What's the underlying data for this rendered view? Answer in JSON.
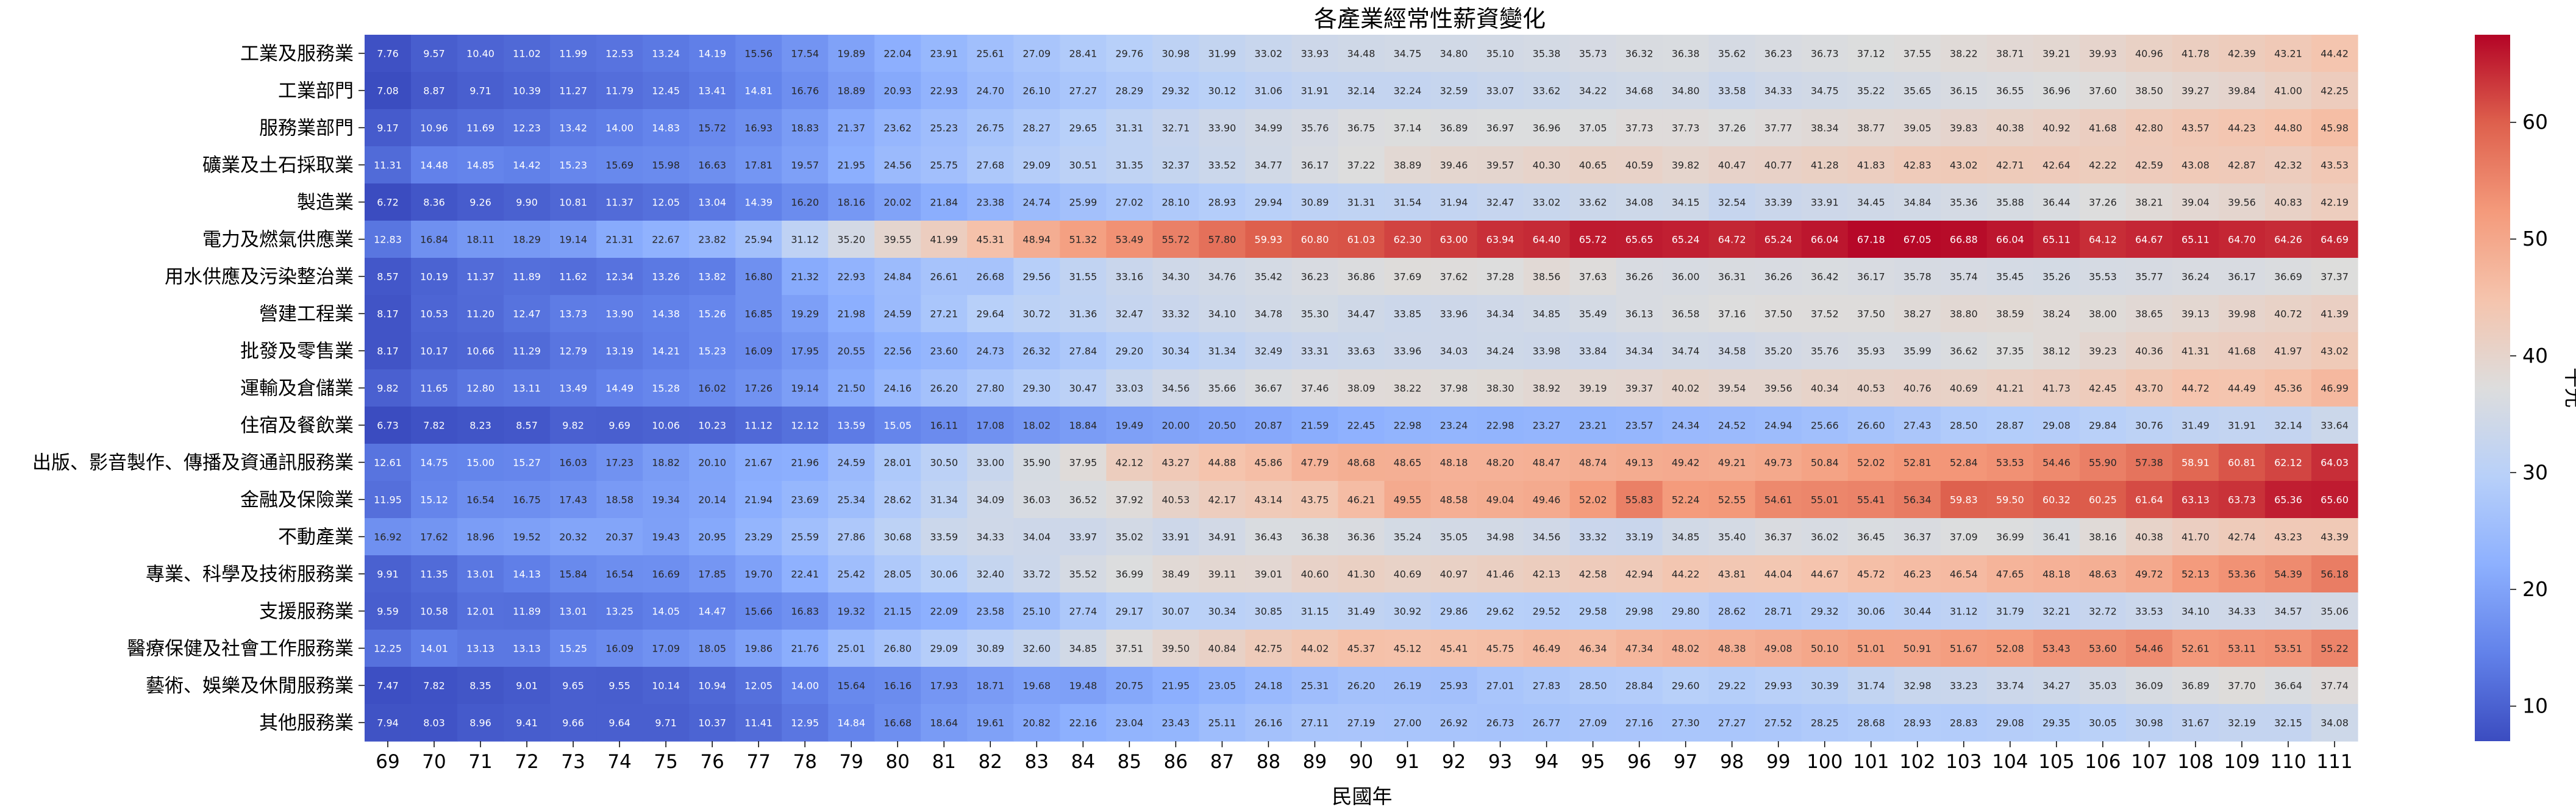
{
  "chart_data": {
    "type": "heatmap",
    "title": "各產業經常性薪資變化",
    "xlabel": "民國年",
    "colorbar_label": "千元",
    "colorbar_ticks": [
      10,
      20,
      30,
      40,
      50,
      60
    ],
    "vmin": 7.0,
    "vmax": 67.5,
    "colormap": "coolwarm",
    "x": [
      "69",
      "70",
      "71",
      "72",
      "73",
      "74",
      "75",
      "76",
      "77",
      "78",
      "79",
      "80",
      "81",
      "82",
      "83",
      "84",
      "85",
      "86",
      "87",
      "88",
      "89",
      "90",
      "91",
      "92",
      "93",
      "94",
      "95",
      "96",
      "97",
      "98",
      "99",
      "100",
      "101",
      "102",
      "103",
      "104",
      "105",
      "106",
      "107",
      "108",
      "109",
      "110",
      "111"
    ],
    "rows": [
      "工業及服務業",
      "工業部門",
      "服務業部門",
      "礦業及土石採取業",
      "製造業",
      "電力及燃氣供應業",
      "用水供應及污染整治業",
      "營建工程業",
      "批發及零售業",
      "運輸及倉儲業",
      "住宿及餐飲業",
      "出版、影音製作、傳播及資通訊服務業",
      "金融及保險業",
      "不動產業",
      "專業、科學及技術服務業",
      "支援服務業",
      "醫療保健及社會工作服務業",
      "藝術、娛樂及休閒服務業",
      "其他服務業"
    ],
    "values": [
      [
        "7.76",
        "9.57",
        "10.40",
        "11.02",
        "11.99",
        "12.53",
        "13.24",
        "14.19",
        "15.56",
        "17.54",
        "19.89",
        "22.04",
        "23.91",
        "25.61",
        "27.09",
        "28.41",
        "29.76",
        "30.98",
        "31.99",
        "33.02",
        "33.93",
        "34.48",
        "34.75",
        "34.80",
        "35.10",
        "35.38",
        "35.73",
        "36.32",
        "36.38",
        "35.62",
        "36.23",
        "36.73",
        "37.12",
        "37.55",
        "38.22",
        "38.71",
        "39.21",
        "39.93",
        "40.96",
        "41.78",
        "42.39",
        "43.21",
        "44.42"
      ],
      [
        "7.08",
        "8.87",
        "9.71",
        "10.39",
        "11.27",
        "11.79",
        "12.45",
        "13.41",
        "14.81",
        "16.76",
        "18.89",
        "20.93",
        "22.93",
        "24.70",
        "26.10",
        "27.27",
        "28.29",
        "29.32",
        "30.12",
        "31.06",
        "31.91",
        "32.14",
        "32.24",
        "32.59",
        "33.07",
        "33.62",
        "34.22",
        "34.68",
        "34.80",
        "33.58",
        "34.33",
        "34.75",
        "35.22",
        "35.65",
        "36.15",
        "36.55",
        "36.96",
        "37.60",
        "38.50",
        "39.27",
        "39.84",
        "41.00",
        "42.25"
      ],
      [
        "9.17",
        "10.96",
        "11.69",
        "12.23",
        "13.42",
        "14.00",
        "14.83",
        "15.72",
        "16.93",
        "18.83",
        "21.37",
        "23.62",
        "25.23",
        "26.75",
        "28.27",
        "29.65",
        "31.31",
        "32.71",
        "33.90",
        "34.99",
        "35.76",
        "36.75",
        "37.14",
        "36.89",
        "36.97",
        "36.96",
        "37.05",
        "37.73",
        "37.73",
        "37.26",
        "37.77",
        "38.34",
        "38.77",
        "39.05",
        "39.83",
        "40.38",
        "40.92",
        "41.68",
        "42.80",
        "43.57",
        "44.23",
        "44.80",
        "45.98"
      ],
      [
        "11.31",
        "14.48",
        "14.85",
        "14.42",
        "15.23",
        "15.69",
        "15.98",
        "16.63",
        "17.81",
        "19.57",
        "21.95",
        "24.56",
        "25.75",
        "27.68",
        "29.09",
        "30.51",
        "31.35",
        "32.37",
        "33.52",
        "34.77",
        "36.17",
        "37.22",
        "38.89",
        "39.46",
        "39.57",
        "40.30",
        "40.65",
        "40.59",
        "39.82",
        "40.47",
        "40.77",
        "41.28",
        "41.83",
        "42.83",
        "43.02",
        "42.71",
        "42.64",
        "42.22",
        "42.59",
        "43.08",
        "42.87",
        "42.32",
        "43.53"
      ],
      [
        "6.72",
        "8.36",
        "9.26",
        "9.90",
        "10.81",
        "11.37",
        "12.05",
        "13.04",
        "14.39",
        "16.20",
        "18.16",
        "20.02",
        "21.84",
        "23.38",
        "24.74",
        "25.99",
        "27.02",
        "28.10",
        "28.93",
        "29.94",
        "30.89",
        "31.31",
        "31.54",
        "31.94",
        "32.47",
        "33.02",
        "33.62",
        "34.08",
        "34.15",
        "32.54",
        "33.39",
        "33.91",
        "34.45",
        "34.84",
        "35.36",
        "35.88",
        "36.44",
        "37.26",
        "38.21",
        "39.04",
        "39.56",
        "40.83",
        "42.19"
      ],
      [
        "12.83",
        "16.84",
        "18.11",
        "18.29",
        "19.14",
        "21.31",
        "22.67",
        "23.82",
        "25.94",
        "31.12",
        "35.20",
        "39.55",
        "41.99",
        "45.31",
        "48.94",
        "51.32",
        "53.49",
        "55.72",
        "57.80",
        "59.93",
        "60.80",
        "61.03",
        "62.30",
        "63.00",
        "63.94",
        "64.40",
        "65.72",
        "65.65",
        "65.24",
        "64.72",
        "65.24",
        "66.04",
        "67.18",
        "67.05",
        "66.88",
        "66.04",
        "65.11",
        "64.12",
        "64.67",
        "65.11",
        "64.70",
        "64.26",
        "64.69"
      ],
      [
        "8.57",
        "10.19",
        "11.37",
        "11.89",
        "11.62",
        "12.34",
        "13.26",
        "13.82",
        "16.80",
        "21.32",
        "22.93",
        "24.84",
        "26.61",
        "26.68",
        "29.56",
        "31.55",
        "33.16",
        "34.30",
        "34.76",
        "35.42",
        "36.23",
        "36.86",
        "37.69",
        "37.62",
        "37.28",
        "38.56",
        "37.63",
        "36.26",
        "36.00",
        "36.31",
        "36.26",
        "36.42",
        "36.17",
        "35.78",
        "35.74",
        "35.45",
        "35.26",
        "35.53",
        "35.77",
        "36.24",
        "36.17",
        "36.69",
        "37.37"
      ],
      [
        "8.17",
        "10.53",
        "11.20",
        "12.47",
        "13.73",
        "13.90",
        "14.38",
        "15.26",
        "16.85",
        "19.29",
        "21.98",
        "24.59",
        "27.21",
        "29.64",
        "30.72",
        "31.36",
        "32.47",
        "33.32",
        "34.10",
        "34.78",
        "35.30",
        "34.47",
        "33.85",
        "33.96",
        "34.34",
        "34.85",
        "35.49",
        "36.13",
        "36.58",
        "37.16",
        "37.50",
        "37.52",
        "37.50",
        "38.27",
        "38.80",
        "38.59",
        "38.24",
        "38.00",
        "38.65",
        "39.13",
        "39.98",
        "40.72",
        "41.39"
      ],
      [
        "8.17",
        "10.17",
        "10.66",
        "11.29",
        "12.79",
        "13.19",
        "14.21",
        "15.23",
        "16.09",
        "17.95",
        "20.55",
        "22.56",
        "23.60",
        "24.73",
        "26.32",
        "27.84",
        "29.20",
        "30.34",
        "31.34",
        "32.49",
        "33.31",
        "33.63",
        "33.96",
        "34.03",
        "34.24",
        "33.98",
        "33.84",
        "34.34",
        "34.74",
        "34.58",
        "35.20",
        "35.76",
        "35.93",
        "35.99",
        "36.62",
        "37.35",
        "38.12",
        "39.23",
        "40.36",
        "41.31",
        "41.68",
        "41.97",
        "43.02"
      ],
      [
        "9.82",
        "11.65",
        "12.80",
        "13.11",
        "13.49",
        "14.49",
        "15.28",
        "16.02",
        "17.26",
        "19.14",
        "21.50",
        "24.16",
        "26.20",
        "27.80",
        "29.30",
        "30.47",
        "33.03",
        "34.56",
        "35.66",
        "36.67",
        "37.46",
        "38.09",
        "38.22",
        "37.98",
        "38.30",
        "38.92",
        "39.19",
        "39.37",
        "40.02",
        "39.54",
        "39.56",
        "40.34",
        "40.53",
        "40.76",
        "40.69",
        "41.21",
        "41.73",
        "42.45",
        "43.70",
        "44.72",
        "44.49",
        "45.36",
        "46.99"
      ],
      [
        "6.73",
        "7.82",
        "8.23",
        "8.57",
        "9.82",
        "9.69",
        "10.06",
        "10.23",
        "11.12",
        "12.12",
        "13.59",
        "15.05",
        "16.11",
        "17.08",
        "18.02",
        "18.84",
        "19.49",
        "20.00",
        "20.50",
        "20.87",
        "21.59",
        "22.45",
        "22.98",
        "23.24",
        "22.98",
        "23.27",
        "23.21",
        "23.57",
        "24.34",
        "24.52",
        "24.94",
        "25.66",
        "26.60",
        "27.43",
        "28.50",
        "28.87",
        "29.08",
        "29.84",
        "30.76",
        "31.49",
        "31.91",
        "32.14",
        "33.64"
      ],
      [
        "12.61",
        "14.75",
        "15.00",
        "15.27",
        "16.03",
        "17.23",
        "18.82",
        "20.10",
        "21.67",
        "21.96",
        "24.59",
        "28.01",
        "30.50",
        "33.00",
        "35.90",
        "37.95",
        "42.12",
        "43.27",
        "44.88",
        "45.86",
        "47.79",
        "48.68",
        "48.65",
        "48.18",
        "48.20",
        "48.47",
        "48.74",
        "49.13",
        "49.42",
        "49.21",
        "49.73",
        "50.84",
        "52.02",
        "52.81",
        "52.84",
        "53.53",
        "54.46",
        "55.90",
        "57.38",
        "58.91",
        "60.81",
        "62.12",
        "64.03"
      ],
      [
        "11.95",
        "15.12",
        "16.54",
        "16.75",
        "17.43",
        "18.58",
        "19.34",
        "20.14",
        "21.94",
        "23.69",
        "25.34",
        "28.62",
        "31.34",
        "34.09",
        "36.03",
        "36.52",
        "37.92",
        "40.53",
        "42.17",
        "43.14",
        "43.75",
        "46.21",
        "49.55",
        "48.58",
        "49.04",
        "49.46",
        "52.02",
        "55.83",
        "52.24",
        "52.55",
        "54.61",
        "55.01",
        "55.41",
        "56.34",
        "59.83",
        "59.50",
        "60.32",
        "60.25",
        "61.64",
        "63.13",
        "63.73",
        "65.36",
        "65.60"
      ],
      [
        "16.92",
        "17.62",
        "18.96",
        "19.52",
        "20.32",
        "20.37",
        "19.43",
        "20.95",
        "23.29",
        "25.59",
        "27.86",
        "30.68",
        "33.59",
        "34.33",
        "34.04",
        "33.97",
        "35.02",
        "33.91",
        "34.91",
        "36.43",
        "36.38",
        "36.36",
        "35.24",
        "35.05",
        "34.98",
        "34.56",
        "33.32",
        "33.19",
        "34.85",
        "35.40",
        "36.37",
        "36.02",
        "36.45",
        "36.37",
        "37.09",
        "36.99",
        "36.41",
        "38.16",
        "40.38",
        "41.70",
        "42.74",
        "43.23",
        "43.39"
      ],
      [
        "9.91",
        "11.35",
        "13.01",
        "14.13",
        "15.84",
        "16.54",
        "16.69",
        "17.85",
        "19.70",
        "22.41",
        "25.42",
        "28.05",
        "30.06",
        "32.40",
        "33.72",
        "35.52",
        "36.99",
        "38.49",
        "39.11",
        "39.01",
        "40.60",
        "41.30",
        "40.69",
        "40.97",
        "41.46",
        "42.13",
        "42.58",
        "42.94",
        "44.22",
        "43.81",
        "44.04",
        "44.67",
        "45.72",
        "46.23",
        "46.54",
        "47.65",
        "48.18",
        "48.63",
        "49.72",
        "52.13",
        "53.36",
        "54.39",
        "56.18"
      ],
      [
        "9.59",
        "10.58",
        "12.01",
        "11.89",
        "13.01",
        "13.25",
        "14.05",
        "14.47",
        "15.66",
        "16.83",
        "19.32",
        "21.15",
        "22.09",
        "23.58",
        "25.10",
        "27.74",
        "29.17",
        "30.07",
        "30.34",
        "30.85",
        "31.15",
        "31.49",
        "30.92",
        "29.86",
        "29.62",
        "29.52",
        "29.58",
        "29.98",
        "29.80",
        "28.62",
        "28.71",
        "29.32",
        "30.06",
        "30.44",
        "31.12",
        "31.79",
        "32.21",
        "32.72",
        "33.53",
        "34.10",
        "34.33",
        "34.57",
        "35.06"
      ],
      [
        "12.25",
        "14.01",
        "13.13",
        "13.13",
        "15.25",
        "16.09",
        "17.09",
        "18.05",
        "19.86",
        "21.76",
        "25.01",
        "26.80",
        "29.09",
        "30.89",
        "32.60",
        "34.85",
        "37.51",
        "39.50",
        "40.84",
        "42.75",
        "44.02",
        "45.37",
        "45.12",
        "45.41",
        "45.75",
        "46.49",
        "46.34",
        "47.34",
        "48.02",
        "48.38",
        "49.08",
        "50.10",
        "51.01",
        "50.91",
        "51.67",
        "52.08",
        "53.43",
        "53.60",
        "54.46",
        "52.61",
        "53.11",
        "53.51",
        "55.22"
      ],
      [
        "7.47",
        "7.82",
        "8.35",
        "9.01",
        "9.65",
        "9.55",
        "10.14",
        "10.94",
        "12.05",
        "14.00",
        "15.64",
        "16.16",
        "17.93",
        "18.71",
        "19.68",
        "19.48",
        "20.75",
        "21.95",
        "23.05",
        "24.18",
        "25.31",
        "26.20",
        "26.19",
        "25.93",
        "27.01",
        "27.83",
        "28.50",
        "28.84",
        "29.60",
        "29.22",
        "29.93",
        "30.39",
        "31.74",
        "32.98",
        "33.23",
        "33.74",
        "34.27",
        "35.03",
        "36.09",
        "36.89",
        "37.70",
        "36.64",
        "37.74"
      ],
      [
        "7.94",
        "8.03",
        "8.96",
        "9.41",
        "9.66",
        "9.64",
        "9.71",
        "10.37",
        "11.41",
        "12.95",
        "14.84",
        "16.68",
        "18.64",
        "19.61",
        "20.82",
        "22.16",
        "23.04",
        "23.43",
        "25.11",
        "26.16",
        "27.11",
        "27.19",
        "27.00",
        "26.92",
        "26.73",
        "26.77",
        "27.09",
        "27.16",
        "27.30",
        "27.27",
        "27.52",
        "28.25",
        "28.68",
        "28.93",
        "28.83",
        "29.08",
        "29.35",
        "30.05",
        "30.98",
        "31.67",
        "32.19",
        "32.15",
        "34.08"
      ]
    ]
  }
}
